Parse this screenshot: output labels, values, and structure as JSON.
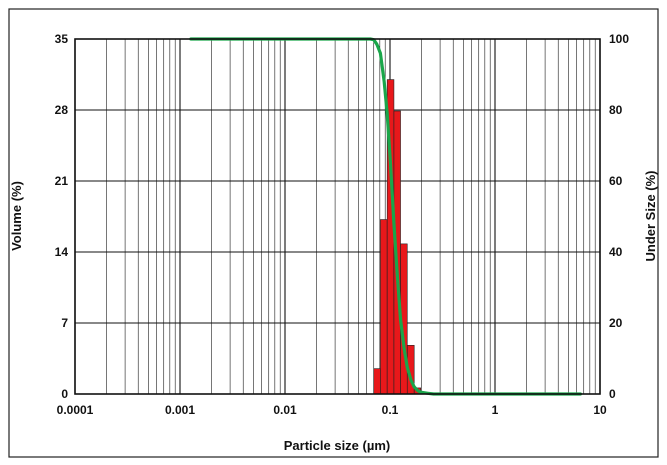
{
  "chart_data": {
    "type": "bar",
    "xlabel": "Particle size (µm)",
    "ylabel": "Volume (%)",
    "y2label": "Under Size (%)",
    "xscale": "log",
    "xlim": [
      0.0001,
      10
    ],
    "ylim": [
      0,
      35
    ],
    "y2lim": [
      0,
      100
    ],
    "grid": true,
    "x_ticks": [
      "0.0001",
      "0.001",
      "0.01",
      "0.1",
      "1",
      "10"
    ],
    "y_ticks": [
      "0",
      "7",
      "14",
      "21",
      "28",
      "35"
    ],
    "y2_ticks": [
      "0",
      "20",
      "40",
      "60",
      "80",
      "100"
    ],
    "bar_color": "#e8181b",
    "line_color": "#1aa64a",
    "bars": [
      {
        "x_from": 0.07,
        "x_to": 0.081,
        "value": 2.5
      },
      {
        "x_from": 0.081,
        "x_to": 0.094,
        "value": 17.2
      },
      {
        "x_from": 0.094,
        "x_to": 0.109,
        "value": 31.0
      },
      {
        "x_from": 0.109,
        "x_to": 0.126,
        "value": 27.9
      },
      {
        "x_from": 0.126,
        "x_to": 0.146,
        "value": 14.8
      },
      {
        "x_from": 0.146,
        "x_to": 0.17,
        "value": 4.8
      },
      {
        "x_from": 0.17,
        "x_to": 0.196,
        "value": 0.6
      }
    ],
    "series": [
      {
        "type": "line",
        "axis": "right",
        "x": [
          0.00127,
          0.065,
          0.07,
          0.075,
          0.081,
          0.088,
          0.094,
          0.101,
          0.109,
          0.117,
          0.126,
          0.136,
          0.146,
          0.158,
          0.17,
          0.183,
          0.196,
          0.23,
          0.26,
          0.3,
          6.5
        ],
        "values": [
          100,
          100,
          99.8,
          98.5,
          96,
          88,
          79,
          65,
          48,
          34,
          21,
          13,
          7.5,
          4,
          2,
          1,
          0.5,
          0.2,
          0,
          0,
          0
        ]
      }
    ]
  }
}
